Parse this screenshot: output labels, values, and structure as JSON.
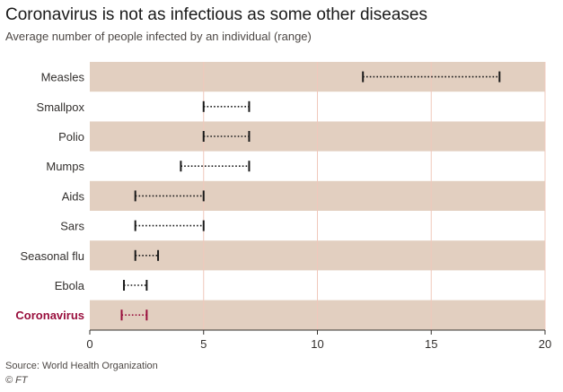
{
  "title": "Coronavirus is not as infectious as some other diseases",
  "subtitle": "Average number of people infected by an individual (range)",
  "source": "Source: World Health Organization",
  "credit": "© FT",
  "colors": {
    "band": "#e2cfc0",
    "gridline": "#f0c8bc",
    "axis": "#33302e",
    "range": "#1a1a1a",
    "highlight": "#990f3d"
  },
  "chart_data": {
    "type": "range",
    "xlim": [
      0,
      20
    ],
    "xticks": [
      "0",
      "5",
      "10",
      "15",
      "20"
    ],
    "xtick_values": [
      0,
      5,
      10,
      15,
      20
    ],
    "series": [
      {
        "label": "Measles",
        "min": 12,
        "max": 18,
        "highlight": false
      },
      {
        "label": "Smallpox",
        "min": 5,
        "max": 7,
        "highlight": false
      },
      {
        "label": "Polio",
        "min": 5,
        "max": 7,
        "highlight": false
      },
      {
        "label": "Mumps",
        "min": 4,
        "max": 7,
        "highlight": false
      },
      {
        "label": "Aids",
        "min": 2,
        "max": 5,
        "highlight": false
      },
      {
        "label": "Sars",
        "min": 2,
        "max": 5,
        "highlight": false
      },
      {
        "label": "Seasonal flu",
        "min": 2,
        "max": 3,
        "highlight": false
      },
      {
        "label": "Ebola",
        "min": 1.5,
        "max": 2.5,
        "highlight": false
      },
      {
        "label": "Coronavirus",
        "min": 1.4,
        "max": 2.5,
        "highlight": true
      }
    ]
  }
}
